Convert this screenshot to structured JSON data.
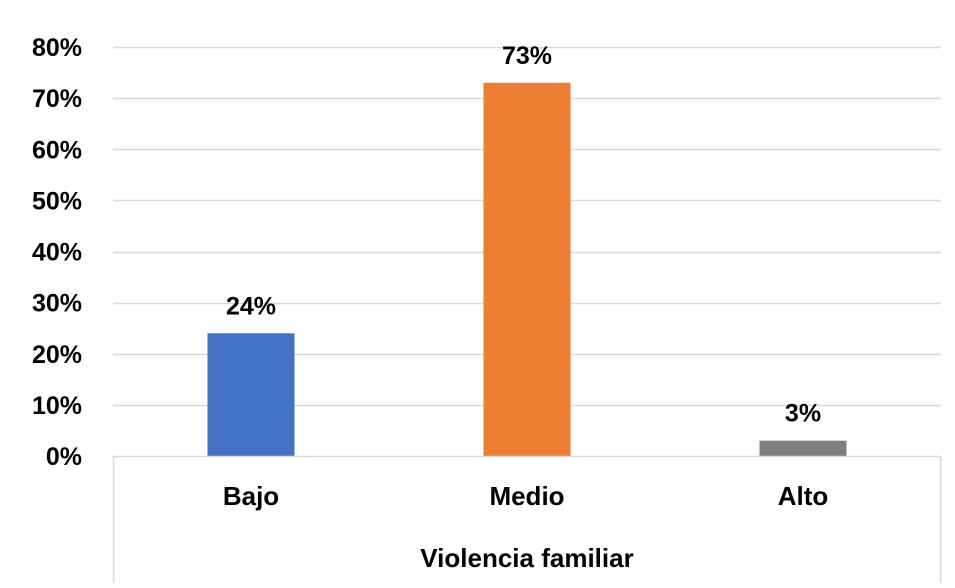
{
  "chart_data": {
    "type": "bar",
    "categories": [
      "Bajo",
      "Medio",
      "Alto"
    ],
    "values": [
      24,
      73,
      3
    ],
    "data_labels": [
      "24%",
      "73%",
      "3%"
    ],
    "bar_colors": [
      "#4472C4",
      "#ED7D31",
      "#7F7F7F"
    ],
    "title": "",
    "xlabel": "Violencia familiar",
    "ylabel": "",
    "ylim": [
      0,
      80
    ],
    "y_ticks": [
      0,
      10,
      20,
      30,
      40,
      50,
      60,
      70,
      80
    ],
    "y_tick_labels": [
      "0%",
      "10%",
      "20%",
      "30%",
      "40%",
      "50%",
      "60%",
      "70%",
      "80%"
    ],
    "grid": true,
    "legend": "none"
  }
}
